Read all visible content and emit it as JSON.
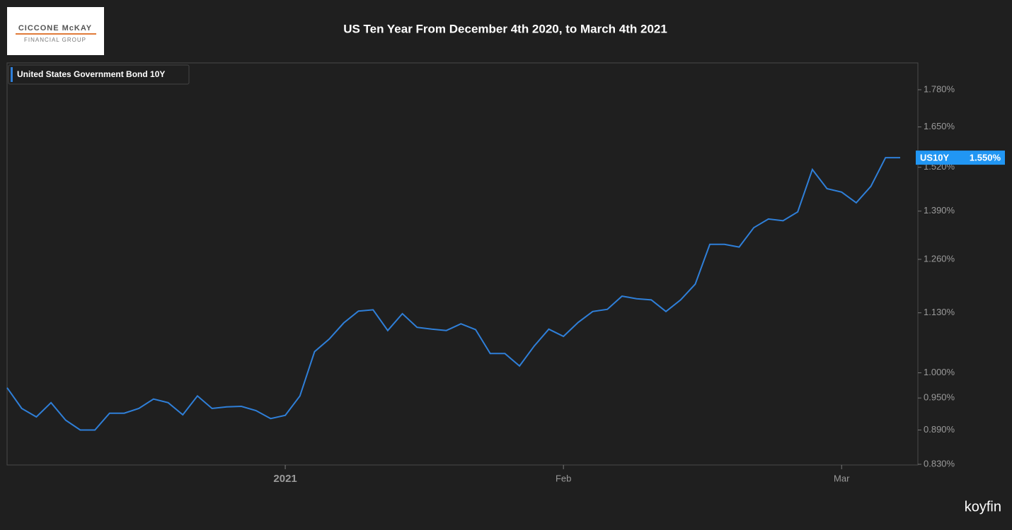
{
  "logo": {
    "name": "CICCONE McKAY",
    "tagline": "FINANCIAL GROUP"
  },
  "watermark": "koyfin",
  "chart_data": {
    "type": "line",
    "title": "US Ten Year From December 4th 2020, to March 4th 2021",
    "y_scale": "log",
    "grid": false,
    "legend_position": "top-left",
    "categories": [
      null,
      null,
      null,
      null,
      null,
      null,
      null,
      null,
      null,
      null,
      null,
      null,
      null,
      null,
      null,
      null,
      null,
      null,
      null,
      "2021",
      null,
      null,
      null,
      null,
      null,
      null,
      null,
      null,
      null,
      null,
      null,
      null,
      null,
      null,
      null,
      null,
      null,
      null,
      "Feb",
      null,
      null,
      null,
      null,
      null,
      null,
      null,
      null,
      null,
      null,
      null,
      null,
      null,
      null,
      null,
      null,
      null,
      null,
      "Mar",
      null,
      null,
      null,
      null
    ],
    "series": [
      {
        "name": "United States Government Bond 10Y",
        "ticker": "US10Y",
        "color": "#2f7fd8",
        "values": [
          0.97,
          0.93,
          0.914,
          0.941,
          0.908,
          0.89,
          0.89,
          0.921,
          0.921,
          0.93,
          0.948,
          0.941,
          0.918,
          0.954,
          0.93,
          0.933,
          0.934,
          0.926,
          0.911,
          0.917,
          0.954,
          1.044,
          1.071,
          1.107,
          1.134,
          1.137,
          1.09,
          1.128,
          1.097,
          1.093,
          1.09,
          1.105,
          1.092,
          1.04,
          1.04,
          1.014,
          1.056,
          1.093,
          1.077,
          1.108,
          1.133,
          1.138,
          1.169,
          1.163,
          1.16,
          1.133,
          1.16,
          1.198,
          1.299,
          1.299,
          1.292,
          1.344,
          1.368,
          1.363,
          1.388,
          1.513,
          1.455,
          1.445,
          1.414,
          1.462,
          1.55,
          1.55
        ],
        "value_labels": [
          null,
          null,
          null,
          null,
          null,
          null,
          null,
          null,
          null,
          null,
          null,
          null,
          null,
          null,
          null,
          null,
          null,
          null,
          null,
          null,
          null,
          null,
          null,
          null,
          null,
          null,
          null,
          null,
          null,
          null,
          null,
          null,
          null,
          null,
          null,
          null,
          null,
          null,
          null,
          null,
          null,
          null,
          null,
          null,
          null,
          null,
          null,
          null,
          null,
          null,
          null,
          null,
          null,
          null,
          null,
          null,
          null,
          null,
          null,
          null,
          null,
          "1.550%"
        ]
      }
    ],
    "ylim": [
      0.83,
      1.88
    ],
    "yticks": [
      {
        "value": 0.83,
        "label": "0.830%"
      },
      {
        "value": 0.89,
        "label": "0.890%"
      },
      {
        "value": 0.95,
        "label": "0.950%"
      },
      {
        "value": 1.0,
        "label": "1.000%"
      },
      {
        "value": 1.13,
        "label": "1.130%"
      },
      {
        "value": 1.26,
        "label": "1.260%"
      },
      {
        "value": 1.39,
        "label": "1.390%"
      },
      {
        "value": 1.52,
        "label": "1.520%"
      },
      {
        "value": 1.65,
        "label": "1.650%"
      },
      {
        "value": 1.78,
        "label": "1.780%"
      }
    ]
  }
}
